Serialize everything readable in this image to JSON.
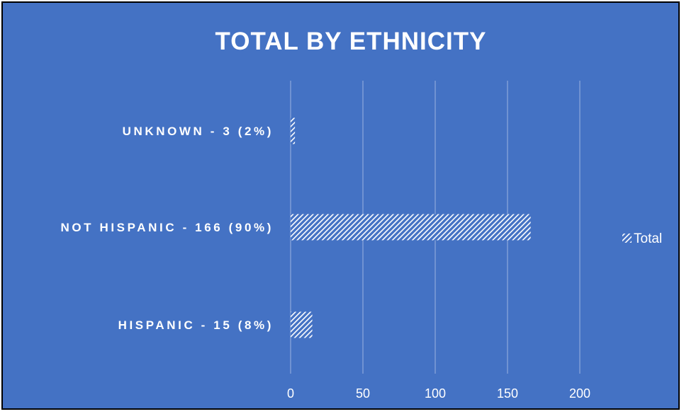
{
  "chart_data": {
    "type": "bar",
    "orientation": "horizontal",
    "title": "TOTAL BY ETHNICITY",
    "categories": [
      "UNKNOWN - 3 (2%)",
      "NOT HISPANIC - 166 (90%)",
      "HISPANIC - 15 (8%)"
    ],
    "series": [
      {
        "name": "Total",
        "values": [
          3,
          166,
          15
        ]
      }
    ],
    "xlim": [
      0,
      200
    ],
    "x_ticks": [
      0,
      50,
      100,
      150,
      200
    ],
    "grid": true,
    "legend": "right",
    "colors": {
      "background": "#4472C4",
      "bar": "#ffffff",
      "grid": "#8EA9DB",
      "text": "#ffffff"
    }
  }
}
